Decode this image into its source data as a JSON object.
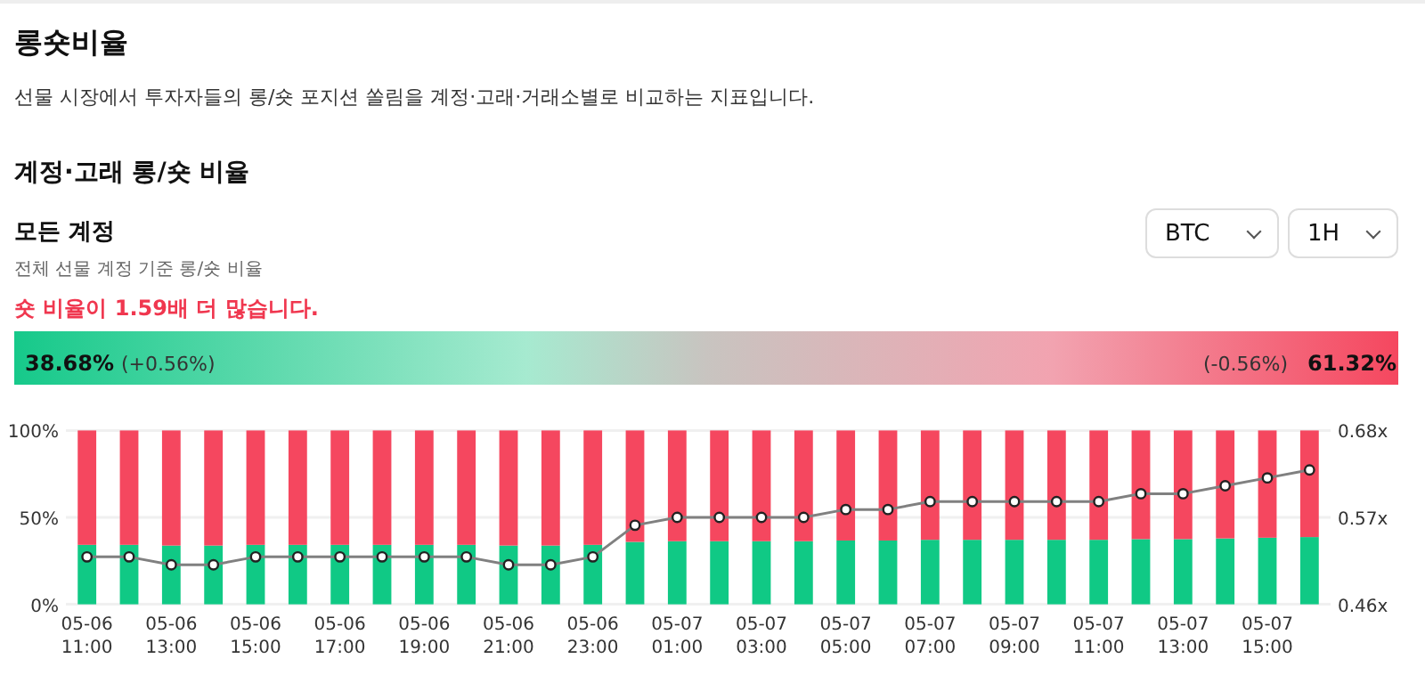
{
  "chart_data": {
    "type": "bar",
    "stacked": true,
    "title": "롱숏비율",
    "subtitle": "선물 시장에서 투자자들의 롱/숏 포지션 쏠림을 계정·고래·거래소별로 비교하는 지표입니다.",
    "annotations": [
      "계정·고래 롱/숏 비율",
      "모든 계정",
      "전체 선물 계정 기준 롱/숏 비율",
      "숏 비율이 1.59배 더 많습니다.",
      "38.68%",
      "(+0.56%)",
      "(-0.56%)",
      "61.32%",
      "BTC",
      "1H"
    ],
    "categories": [
      "05-06 11:00",
      null,
      "05-06 13:00",
      null,
      "05-06 15:00",
      null,
      "05-06 17:00",
      null,
      "05-06 19:00",
      null,
      "05-06 21:00",
      null,
      "05-06 23:00",
      null,
      "05-07 01:00",
      null,
      "05-07 03:00",
      null,
      "05-07 05:00",
      null,
      "05-07 07:00",
      null,
      "05-07 09:00",
      null,
      "05-07 11:00",
      null,
      "05-07 13:00",
      null,
      "05-07 15:00",
      null
    ],
    "series": [
      {
        "color": "#10c985",
        "values": [
          34.2,
          34.2,
          33.8,
          33.8,
          34.2,
          34.2,
          34.2,
          34.2,
          34.2,
          34.2,
          33.8,
          33.8,
          34.2,
          35.9,
          36.3,
          36.3,
          36.3,
          36.3,
          36.7,
          36.7,
          37.1,
          37.1,
          37.1,
          37.1,
          37.1,
          37.5,
          37.5,
          37.9,
          38.3,
          38.68
        ]
      },
      {
        "color": "#f5475f",
        "values": [
          65.8,
          65.8,
          66.2,
          66.2,
          65.8,
          65.8,
          65.8,
          65.8,
          65.8,
          65.8,
          66.2,
          66.2,
          65.8,
          64.1,
          63.7,
          63.7,
          63.7,
          63.7,
          63.3,
          63.3,
          62.9,
          62.9,
          62.9,
          62.9,
          62.9,
          62.5,
          62.5,
          62.1,
          61.7,
          61.32
        ]
      },
      {
        "type": "line",
        "axis": "y2",
        "color": "#808080",
        "marker": "circle",
        "values": [
          0.52,
          0.52,
          0.51,
          0.51,
          0.52,
          0.52,
          0.52,
          0.52,
          0.52,
          0.52,
          0.51,
          0.51,
          0.52,
          0.56,
          0.57,
          0.57,
          0.57,
          0.57,
          0.58,
          0.58,
          0.59,
          0.59,
          0.59,
          0.59,
          0.59,
          0.6,
          0.6,
          0.61,
          0.62,
          0.63
        ]
      }
    ],
    "ylim": [
      0,
      100
    ],
    "yticks": [
      {
        "value": 0,
        "label": "0%"
      },
      {
        "value": 50,
        "label": "50%"
      },
      {
        "value": 100,
        "label": "100%"
      }
    ],
    "y2lim": [
      0.46,
      0.68
    ],
    "y2ticks": [
      {
        "value": 0.46,
        "label": "0.46x"
      },
      {
        "value": 0.57,
        "label": "0.57x"
      },
      {
        "value": 0.68,
        "label": "0.68x"
      }
    ],
    "grid": "y"
  }
}
